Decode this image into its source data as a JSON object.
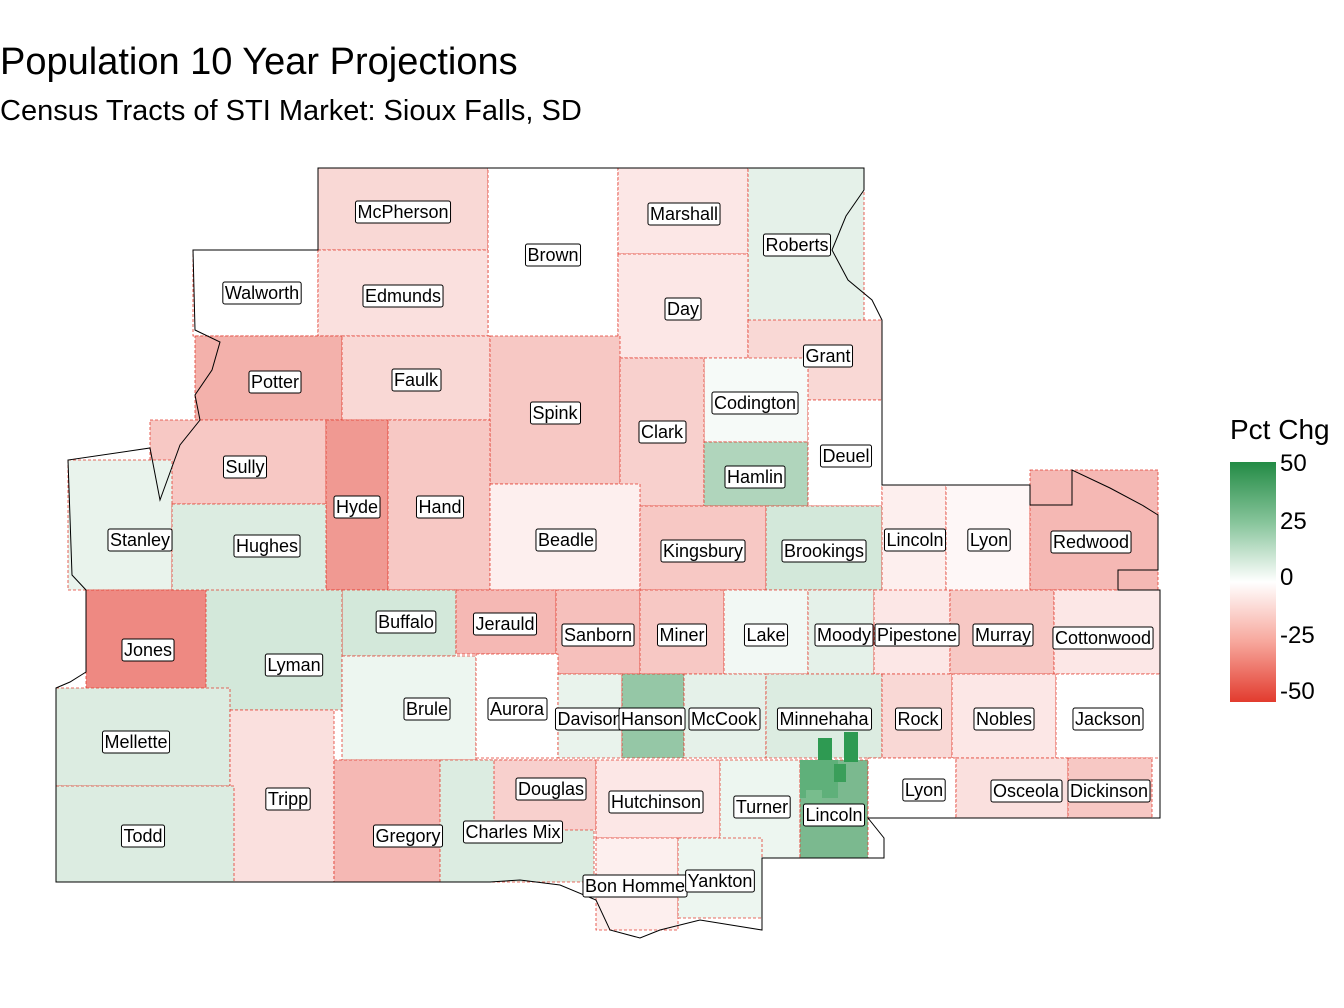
{
  "title": "Population 10 Year Projections",
  "subtitle": "Census Tracts of STI Market: Sioux Falls, SD",
  "legend": {
    "title": "Pct Chg",
    "ticks": [
      "50",
      "25",
      "0",
      "-25",
      "-50"
    ],
    "tick_values": [
      50,
      25,
      0,
      -25,
      -50
    ],
    "colors": {
      "high": "#238b45",
      "mid": "#ffffff",
      "low": "#e23b2e"
    },
    "range": [
      -50,
      50
    ]
  },
  "counties": [
    {
      "name": "McPherson",
      "pct": -10
    },
    {
      "name": "Brown",
      "pct": 0
    },
    {
      "name": "Marshall",
      "pct": -6
    },
    {
      "name": "Roberts",
      "pct": 6
    },
    {
      "name": "Walworth",
      "pct": 0
    },
    {
      "name": "Edmunds",
      "pct": -8
    },
    {
      "name": "Day",
      "pct": -6
    },
    {
      "name": "Potter",
      "pct": -20
    },
    {
      "name": "Faulk",
      "pct": -10
    },
    {
      "name": "Spink",
      "pct": -14
    },
    {
      "name": "Grant",
      "pct": -10
    },
    {
      "name": "Codington",
      "pct": 2
    },
    {
      "name": "Clark",
      "pct": -12
    },
    {
      "name": "Sully",
      "pct": -14
    },
    {
      "name": "Hyde",
      "pct": -26
    },
    {
      "name": "Hand",
      "pct": -14
    },
    {
      "name": "Hamlin",
      "pct": 18
    },
    {
      "name": "Deuel",
      "pct": 0
    },
    {
      "name": "Stanley",
      "pct": 5
    },
    {
      "name": "Hughes",
      "pct": 8
    },
    {
      "name": "Beadle",
      "pct": -4
    },
    {
      "name": "Kingsbury",
      "pct": -14
    },
    {
      "name": "Brookings",
      "pct": 10
    },
    {
      "name": "Lincoln",
      "pct": -4
    },
    {
      "name": "Lyon",
      "pct": -2
    },
    {
      "name": "Redwood",
      "pct": -18
    },
    {
      "name": "Buffalo",
      "pct": 10
    },
    {
      "name": "Jerauld",
      "pct": -18
    },
    {
      "name": "Sanborn",
      "pct": -16
    },
    {
      "name": "Miner",
      "pct": -14
    },
    {
      "name": "Lake",
      "pct": 3
    },
    {
      "name": "Moody",
      "pct": 6
    },
    {
      "name": "Pipestone",
      "pct": -6
    },
    {
      "name": "Murray",
      "pct": -14
    },
    {
      "name": "Cottonwood",
      "pct": -6
    },
    {
      "name": "Jones",
      "pct": -30
    },
    {
      "name": "Lyman",
      "pct": 10
    },
    {
      "name": "Brule",
      "pct": 4
    },
    {
      "name": "Aurora",
      "pct": 0
    },
    {
      "name": "Davison",
      "pct": 5
    },
    {
      "name": "Hanson",
      "pct": 24
    },
    {
      "name": "McCook",
      "pct": 6
    },
    {
      "name": "Minnehaha",
      "pct": 8
    },
    {
      "name": "Rock",
      "pct": -10
    },
    {
      "name": "Nobles",
      "pct": -6
    },
    {
      "name": "Jackson",
      "pct": 0
    },
    {
      "name": "Mellette",
      "pct": 8
    },
    {
      "name": "Tripp",
      "pct": -8
    },
    {
      "name": "Gregory",
      "pct": -18
    },
    {
      "name": "Charles Mix",
      "pct": 8
    },
    {
      "name": "Douglas",
      "pct": -12
    },
    {
      "name": "Hutchinson",
      "pct": -6
    },
    {
      "name": "Turner",
      "pct": 4
    },
    {
      "name": "Lincoln",
      "pct": 30
    },
    {
      "name": "Lyon",
      "pct": 0
    },
    {
      "name": "Osceola",
      "pct": -8
    },
    {
      "name": "Dickinson",
      "pct": -14
    },
    {
      "name": "Todd",
      "pct": 8
    },
    {
      "name": "Bon Homme",
      "pct": -4
    },
    {
      "name": "Yankton",
      "pct": 4
    }
  ]
}
